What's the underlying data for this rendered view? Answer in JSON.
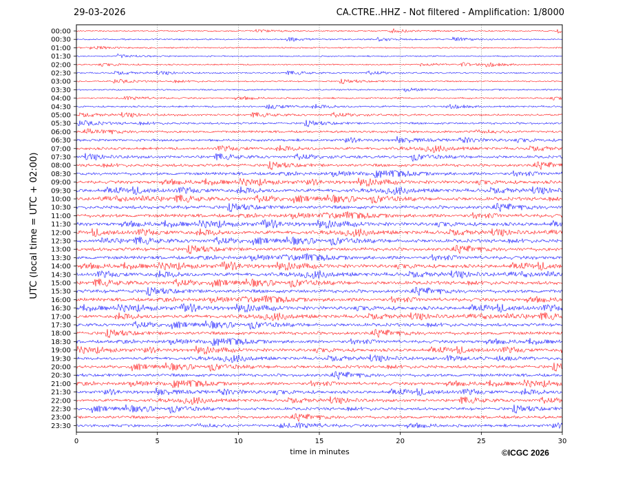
{
  "header": {
    "date": "29-03-2026",
    "station_title": "CA.CTRE..HHZ - Not filtered - Amplification: 1/8000"
  },
  "footer": {
    "copyright": "©ICGC 2026"
  },
  "chart_data": {
    "type": "line",
    "title": "CA.CTRE..HHZ - Not filtered - Amplification: 1/8000",
    "xlabel": "time in minutes",
    "ylabel": "UTC (local time = UTC + 02:00)",
    "xlim": [
      0,
      30
    ],
    "x_ticks": [
      "0",
      "5",
      "10",
      "15",
      "20",
      "25",
      "30"
    ],
    "y_ticks": [
      "00:00",
      "00:30",
      "01:00",
      "01:30",
      "02:00",
      "02:30",
      "03:00",
      "03:30",
      "04:00",
      "04:30",
      "05:00",
      "05:30",
      "06:00",
      "06:30",
      "07:00",
      "07:30",
      "08:00",
      "08:30",
      "09:00",
      "09:30",
      "10:00",
      "10:30",
      "11:00",
      "11:30",
      "12:00",
      "12:30",
      "13:00",
      "13:30",
      "14:00",
      "14:30",
      "15:00",
      "15:30",
      "16:00",
      "16:30",
      "17:00",
      "17:30",
      "18:00",
      "18:30",
      "19:00",
      "19:30",
      "20:00",
      "20:30",
      "21:00",
      "21:30",
      "22:00",
      "22:30",
      "23:00",
      "23:30"
    ],
    "grid": {
      "vertical_dotted": true,
      "at_minutes": [
        5,
        10,
        15,
        20,
        25
      ]
    },
    "trace_colors": [
      "#ff0000",
      "#0000ff"
    ],
    "trace_activity": [
      0.22,
      0.22,
      0.22,
      0.22,
      0.24,
      0.25,
      0.25,
      0.28,
      0.32,
      0.38,
      0.45,
      0.5,
      0.6,
      0.65,
      0.7,
      0.75,
      0.8,
      0.85,
      0.9,
      0.95,
      1.0,
      1.0,
      1.0,
      1.0,
      1.0,
      1.0,
      1.0,
      1.0,
      1.0,
      1.0,
      1.0,
      1.0,
      1.0,
      1.0,
      0.95,
      0.9,
      0.9,
      0.85,
      0.85,
      0.85,
      0.85,
      0.85,
      0.85,
      0.8,
      0.8,
      0.8,
      0.8,
      0.75
    ]
  },
  "colors": {
    "trace_a": "#ff0000",
    "trace_b": "#0000ff",
    "frame": "#000000",
    "grid": "#555555"
  }
}
